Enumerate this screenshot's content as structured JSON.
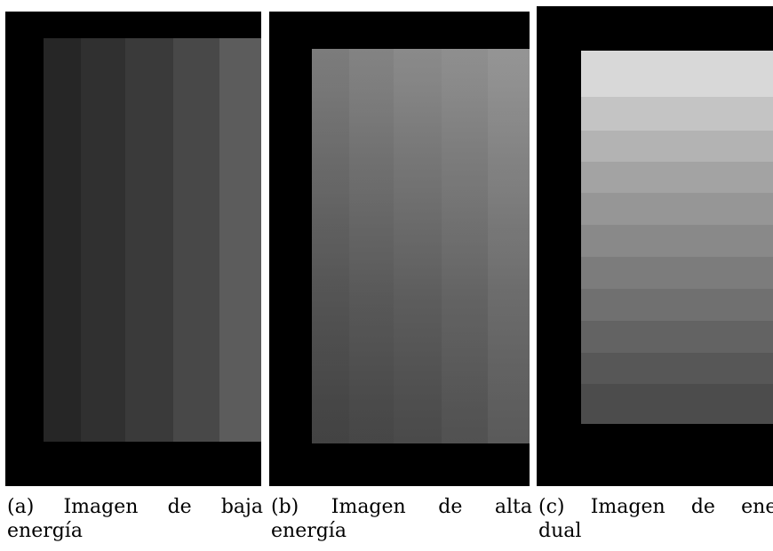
{
  "figure": {
    "panels": [
      {
        "caption_line1": [
          "(a)",
          "Imagen",
          "de",
          "baja"
        ],
        "caption_line2": "energía"
      },
      {
        "caption_line1": [
          "(b)",
          "Imagen",
          "de",
          "alta"
        ],
        "caption_line2": "energía"
      },
      {
        "caption_line1": [
          "(c)",
          "Imagen",
          "de",
          "energí"
        ],
        "caption_line2": "dual"
      }
    ]
  }
}
